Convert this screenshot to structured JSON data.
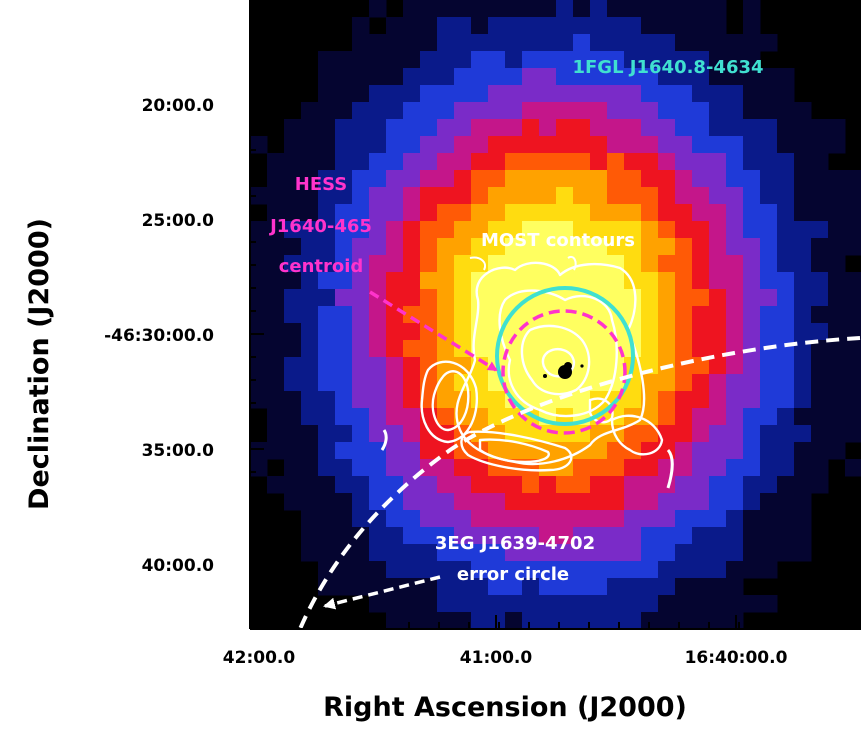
{
  "figure": {
    "x_axis_label": "Right Ascension (J2000)",
    "y_axis_label": "Declination (J2000)",
    "x_ticks": [
      "42:00.0",
      "41:00.0",
      "16:40:00.0"
    ],
    "y_ticks": [
      "20:00.0",
      "25:00.0",
      "-46:30:00.0",
      "35:00.0",
      "40:00.0"
    ]
  },
  "annotations": {
    "fermi_source": "1FGL J1640.8-4634",
    "hess_line1": "HESS",
    "hess_line2": "J1640-465",
    "hess_line3": "centroid",
    "most_label": "MOST contours",
    "egret_line1": "3EG J1639-4702",
    "egret_line2": "error circle"
  },
  "colors": {
    "background": "#000000",
    "fermi_circle": "#40e0d0",
    "hess_circle": "#ff33cc",
    "contours": "#ffffff",
    "egret_circle": "#ffffff"
  },
  "colormap": [
    "#000000",
    "#050530",
    "#0a1a8a",
    "#1f3ad8",
    "#7a2bc8",
    "#c4168a",
    "#ee1420",
    "#ff5a06",
    "#ffa200",
    "#ffdc10",
    "#ffff60"
  ]
}
